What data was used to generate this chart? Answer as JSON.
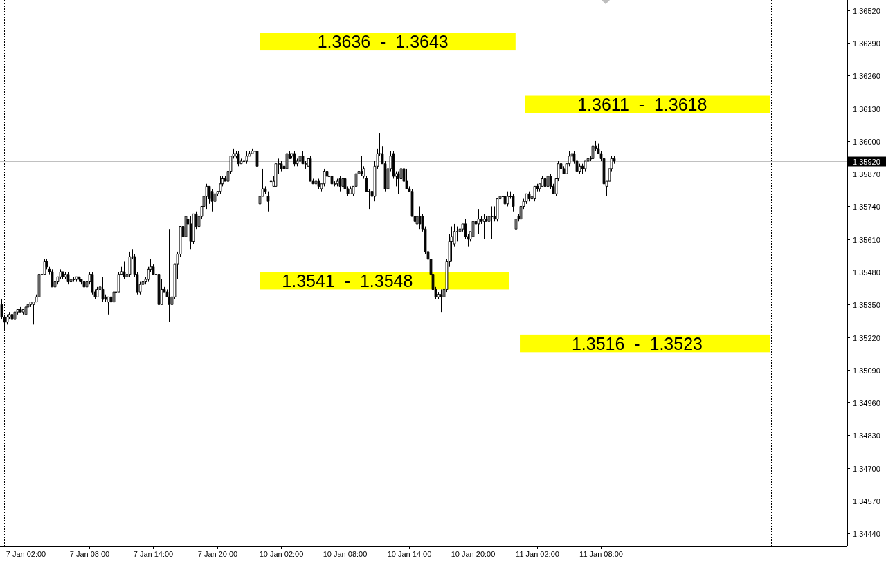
{
  "chart_data": {
    "type": "candlestick",
    "categories": [
      null,
      null,
      null,
      null,
      null,
      null,
      null,
      null,
      null,
      "7 Jan 02:00",
      null,
      null,
      null,
      null,
      null,
      null,
      null,
      null,
      null,
      null,
      null,
      null,
      null,
      null,
      null,
      null,
      null,
      null,
      null,
      null,
      null,
      null,
      null,
      "7 Jan 08:00",
      null,
      null,
      null,
      null,
      null,
      null,
      null,
      null,
      null,
      null,
      null,
      null,
      null,
      null,
      null,
      null,
      null,
      null,
      null,
      null,
      null,
      null,
      null,
      "7 Jan 14:00",
      null,
      null,
      null,
      null,
      null,
      null,
      null,
      null,
      null,
      null,
      null,
      null,
      null,
      null,
      null,
      null,
      null,
      null,
      null,
      null,
      null,
      null,
      null,
      "7 Jan 20:00",
      null,
      null,
      null,
      null,
      null,
      null,
      null,
      null,
      null,
      null,
      null,
      null,
      null,
      null,
      null,
      null,
      null,
      null,
      null,
      null,
      null,
      null,
      null,
      "10 Jan 02:00",
      null,
      null,
      null,
      null,
      null,
      null,
      null,
      null,
      null,
      null,
      null,
      null,
      null,
      null,
      null,
      null,
      null,
      null,
      null,
      null,
      null,
      null,
      null,
      "10 Jan 08:00",
      null,
      null,
      null,
      null,
      null,
      null,
      null,
      null,
      null,
      null,
      null,
      null,
      null,
      null,
      null,
      null,
      null,
      null,
      null,
      null,
      null,
      null,
      null,
      "10 Jan 14:00",
      null,
      null,
      null,
      null,
      null,
      null,
      null,
      null,
      null,
      null,
      null,
      null,
      null,
      null,
      null,
      null,
      null,
      null,
      null,
      null,
      null,
      null,
      null,
      "10 Jan 20:00",
      null,
      null,
      null,
      null,
      null,
      null,
      null,
      null,
      null,
      null,
      null,
      null,
      null,
      null,
      null,
      null,
      null,
      null,
      null,
      null,
      null,
      null,
      null,
      "11 Jan 02:00",
      null,
      null,
      null,
      null,
      null,
      null,
      null,
      null,
      null,
      null,
      null,
      null,
      null,
      null,
      null,
      null,
      null,
      null,
      null,
      null,
      null,
      null,
      null,
      "11 Jan 08:00",
      null,
      null,
      null,
      null,
      null,
      null,
      null,
      null,
      null,
      null,
      null,
      null,
      null,
      null,
      null,
      null,
      null,
      null,
      null,
      null,
      null,
      null,
      null,
      null,
      null,
      null,
      null,
      null,
      null,
      null,
      null,
      null,
      null,
      null,
      null,
      null,
      null,
      null,
      null,
      null,
      null,
      null,
      null,
      null,
      null,
      null,
      null,
      null,
      null,
      null,
      null,
      null,
      null,
      null,
      null,
      null,
      null,
      null,
      null,
      null,
      null,
      null,
      null,
      null,
      null,
      null,
      null,
      null,
      null,
      null,
      null,
      null,
      null,
      null,
      null,
      null,
      null,
      null,
      null,
      null,
      null,
      null,
      null,
      null,
      null,
      null,
      null,
      null,
      null,
      null,
      null,
      null
    ],
    "ohlc": [
      [
        1.3535,
        1.3537,
        1.3529,
        1.353
      ],
      [
        1.353,
        1.3531,
        1.3525,
        1.3528
      ],
      [
        1.3528,
        1.3531,
        1.3527,
        1.353
      ],
      [
        1.353,
        1.3532,
        1.3529,
        1.3531
      ],
      [
        1.3531,
        1.3532,
        1.3528,
        1.3529
      ],
      [
        1.3529,
        1.3533,
        1.3529,
        1.3532
      ],
      [
        1.3532,
        1.3533,
        1.3531,
        1.3533
      ],
      [
        1.3533,
        1.3534,
        1.3532,
        1.3532
      ],
      [
        1.3532,
        1.3533,
        1.3531,
        1.3533
      ],
      [
        1.3531,
        1.3535,
        1.3531,
        1.3534
      ],
      [
        1.3534,
        1.3536,
        1.3533,
        1.3535
      ],
      [
        1.3535,
        1.3536,
        1.3534,
        1.3536
      ],
      [
        1.3535,
        1.3536,
        1.3527,
        1.3536
      ],
      [
        1.3536,
        1.3539,
        1.3536,
        1.3538
      ],
      [
        1.3538,
        1.3548,
        1.3538,
        1.3547
      ],
      [
        1.3547,
        1.3548,
        1.3546,
        1.3547
      ],
      [
        1.3547,
        1.3553,
        1.3547,
        1.3552
      ],
      [
        1.3552,
        1.3553,
        1.3549,
        1.355
      ],
      [
        1.3549,
        1.355,
        1.3547,
        1.3548
      ],
      [
        1.3548,
        1.3549,
        1.3542,
        1.3542
      ],
      [
        1.3542,
        1.3545,
        1.3541,
        1.3544
      ],
      [
        1.3544,
        1.3546,
        1.3543,
        1.3546
      ],
      [
        1.3546,
        1.3549,
        1.3545,
        1.3548
      ],
      [
        1.3548,
        1.3548,
        1.3545,
        1.3546
      ],
      [
        1.3546,
        1.3548,
        1.3545,
        1.3547
      ],
      [
        1.3547,
        1.3548,
        1.3543,
        1.3544
      ],
      [
        1.3544,
        1.3546,
        1.3544,
        1.3545
      ],
      [
        1.3545,
        1.3546,
        1.3544,
        1.3545
      ],
      [
        1.3545,
        1.3546,
        1.3544,
        1.3546
      ],
      [
        1.3546,
        1.3546,
        1.3544,
        1.3545
      ],
      [
        1.3545,
        1.3545,
        1.3543,
        1.3544
      ],
      [
        1.3544,
        1.3545,
        1.3541,
        1.3542
      ],
      [
        1.3542,
        1.3544,
        1.3541,
        1.3544
      ],
      [
        1.3544,
        1.3548,
        1.3543,
        1.3547
      ],
      [
        1.3547,
        1.3548,
        1.3539,
        1.354
      ],
      [
        1.354,
        1.3541,
        1.3537,
        1.3538
      ],
      [
        1.3538,
        1.3542,
        1.3538,
        1.3541
      ],
      [
        1.3541,
        1.3543,
        1.354,
        1.3542
      ],
      [
        1.3541,
        1.3546,
        1.3536,
        1.3537
      ],
      [
        1.3538,
        1.3539,
        1.3536,
        1.3537
      ],
      [
        1.3536,
        1.3538,
        1.3531,
        1.3538
      ],
      [
        1.3538,
        1.3539,
        1.3526,
        1.3536
      ],
      [
        1.3536,
        1.3541,
        1.3535,
        1.354
      ],
      [
        1.354,
        1.3541,
        1.3538,
        1.354
      ],
      [
        1.354,
        1.3548,
        1.354,
        1.3547
      ],
      [
        1.3547,
        1.355,
        1.3547,
        1.3548
      ],
      [
        1.3548,
        1.3552,
        1.3545,
        1.3546
      ],
      [
        1.3546,
        1.3547,
        1.3545,
        1.3547
      ],
      [
        1.3547,
        1.3556,
        1.3546,
        1.3554
      ],
      [
        1.3554,
        1.3557,
        1.3553,
        1.3554
      ],
      [
        1.3554,
        1.3555,
        1.3546,
        1.3547
      ],
      [
        1.3547,
        1.3548,
        1.3539,
        1.354
      ],
      [
        1.354,
        1.3544,
        1.3539,
        1.3543
      ],
      [
        1.3543,
        1.3545,
        1.3542,
        1.3544
      ],
      [
        1.3544,
        1.3546,
        1.3543,
        1.3545
      ],
      [
        1.3545,
        1.355,
        1.3544,
        1.3549
      ],
      [
        1.3549,
        1.3553,
        1.3548,
        1.355
      ],
      [
        1.355,
        1.3551,
        1.3547,
        1.3547
      ],
      [
        1.3547,
        1.3548,
        1.3546,
        1.3547
      ],
      [
        1.3547,
        1.3547,
        1.3535,
        1.3535
      ],
      [
        1.3535,
        1.3545,
        1.3535,
        1.3541
      ],
      [
        1.3541,
        1.3542,
        1.354,
        1.354
      ],
      [
        1.354,
        1.3541,
        1.3538,
        1.3538
      ],
      [
        1.3538,
        1.3565,
        1.3528,
        1.3535
      ],
      [
        1.3535,
        1.3552,
        1.3534,
        1.3538
      ],
      [
        1.3538,
        1.3551,
        1.3537,
        1.3551
      ],
      [
        1.3551,
        1.3556,
        1.3545,
        1.3555
      ],
      [
        1.3555,
        1.3566,
        1.3554,
        1.3566
      ],
      [
        1.3566,
        1.3572,
        1.3558,
        1.3562
      ],
      [
        1.3562,
        1.357,
        1.3562,
        1.357
      ],
      [
        1.3569,
        1.3573,
        1.3564,
        1.3567
      ],
      [
        1.3567,
        1.357,
        1.3557,
        1.356
      ],
      [
        1.356,
        1.3571,
        1.3559,
        1.3571
      ],
      [
        1.3571,
        1.3572,
        1.3565,
        1.3566
      ],
      [
        1.3566,
        1.3574,
        1.3559,
        1.357
      ],
      [
        1.357,
        1.3574,
        1.3569,
        1.3574
      ],
      [
        1.3574,
        1.3579,
        1.3573,
        1.3578
      ],
      [
        1.3578,
        1.3583,
        1.3573,
        1.3582
      ],
      [
        1.3582,
        1.3582,
        1.3575,
        1.3577
      ],
      [
        1.358,
        1.3581,
        1.3572,
        1.3576
      ],
      [
        1.3576,
        1.358,
        1.3575,
        1.3579
      ],
      [
        1.3579,
        1.358,
        1.3578,
        1.358
      ],
      [
        1.358,
        1.3586,
        1.3579,
        1.3583
      ],
      [
        1.3583,
        1.3586,
        1.3582,
        1.3585
      ],
      [
        1.3585,
        1.3586,
        1.3584,
        1.3584
      ],
      [
        1.3584,
        1.3589,
        1.3584,
        1.3588
      ],
      [
        1.3588,
        1.3594,
        1.3587,
        1.3594
      ],
      [
        1.3594,
        1.3597,
        1.3593,
        1.3595
      ],
      [
        1.3594,
        1.3596,
        1.3593,
        1.3595
      ],
      [
        1.3595,
        1.3596,
        1.359,
        1.3591
      ],
      [
        1.3591,
        1.3593,
        1.3591,
        1.3592
      ],
      [
        1.3592,
        1.3593,
        1.3591,
        1.3592
      ],
      [
        1.3592,
        1.3596,
        1.3591,
        1.3594
      ],
      [
        1.3594,
        1.3596,
        1.3594,
        1.3595
      ],
      [
        1.3595,
        1.3597,
        1.3595,
        1.3596
      ],
      [
        1.3596,
        1.3597,
        1.3594,
        1.3596
      ],
      [
        1.3596,
        1.3596,
        1.359,
        1.359
      ],
      [
        1.3575,
        1.3578,
        1.3573,
        1.3578
      ],
      [
        1.3578,
        1.3589,
        1.3578,
        1.3581
      ],
      [
        1.3581,
        1.3582,
        1.3579,
        1.358
      ],
      [
        1.3578,
        1.358,
        1.3572,
        1.3576
      ],
      [
        1.3584,
        1.3591,
        1.3583,
        1.3584
      ],
      [
        1.3582,
        1.3586,
        1.3582,
        1.3584
      ],
      [
        1.3582,
        1.3591,
        1.3582,
        1.3591
      ],
      [
        1.3591,
        1.3593,
        1.3587,
        1.3591
      ],
      [
        1.3591,
        1.3592,
        1.3588,
        1.3589
      ],
      [
        1.359,
        1.3594,
        1.3589,
        1.3589
      ],
      [
        1.3589,
        1.3597,
        1.3589,
        1.3595
      ],
      [
        1.3595,
        1.3596,
        1.3593,
        1.3593
      ],
      [
        1.3594,
        1.3595,
        1.3593,
        1.3595
      ],
      [
        1.3595,
        1.3596,
        1.359,
        1.3591
      ],
      [
        1.3591,
        1.3593,
        1.359,
        1.3592
      ],
      [
        1.3592,
        1.3595,
        1.3592,
        1.3594
      ],
      [
        1.3594,
        1.3596,
        1.3591,
        1.3591
      ],
      [
        1.3591,
        1.3592,
        1.3589,
        1.3591
      ],
      [
        1.359,
        1.3593,
        1.359,
        1.3593
      ],
      [
        1.3593,
        1.3594,
        1.3584,
        1.3584
      ],
      [
        1.3584,
        1.3585,
        1.3583,
        1.3583
      ],
      [
        1.3583,
        1.3584,
        1.3582,
        1.3584
      ],
      [
        1.3584,
        1.3585,
        1.3581,
        1.3582
      ],
      [
        1.3581,
        1.3583,
        1.358,
        1.3583
      ],
      [
        1.3583,
        1.3589,
        1.3582,
        1.3588
      ],
      [
        1.3588,
        1.3589,
        1.3585,
        1.3586
      ],
      [
        1.3586,
        1.3589,
        1.3585,
        1.3586
      ],
      [
        1.3586,
        1.3587,
        1.3582,
        1.3583
      ],
      [
        1.3583,
        1.3584,
        1.3582,
        1.3583
      ],
      [
        1.3583,
        1.3585,
        1.3582,
        1.3584
      ],
      [
        1.3585,
        1.3586,
        1.358,
        1.3582
      ],
      [
        1.3582,
        1.3586,
        1.358,
        1.3585
      ],
      [
        1.3585,
        1.3586,
        1.358,
        1.3581
      ],
      [
        1.3581,
        1.3582,
        1.3578,
        1.3579
      ],
      [
        1.3579,
        1.3582,
        1.3579,
        1.3581
      ],
      [
        1.3579,
        1.3582,
        1.3578,
        1.3582
      ],
      [
        1.3582,
        1.3589,
        1.3582,
        1.3587
      ],
      [
        1.3587,
        1.3589,
        1.3586,
        1.3588
      ],
      [
        1.3588,
        1.3594,
        1.3586,
        1.3587
      ],
      [
        1.3586,
        1.359,
        1.3585,
        1.3589
      ],
      [
        1.3585,
        1.3586,
        1.358,
        1.358
      ],
      [
        1.358,
        1.3581,
        1.3573,
        1.358
      ],
      [
        1.358,
        1.3581,
        1.3577,
        1.3578
      ],
      [
        1.3578,
        1.3592,
        1.3576,
        1.359
      ],
      [
        1.359,
        1.3597,
        1.3589,
        1.3595
      ],
      [
        1.3595,
        1.3603,
        1.3594,
        1.3595
      ],
      [
        1.3595,
        1.3598,
        1.3591,
        1.3591
      ],
      [
        1.3591,
        1.3592,
        1.358,
        1.3581
      ],
      [
        1.3581,
        1.359,
        1.3578,
        1.3589
      ],
      [
        1.3589,
        1.3596,
        1.3588,
        1.3594
      ],
      [
        1.3595,
        1.3596,
        1.3585,
        1.3586
      ],
      [
        1.3586,
        1.3588,
        1.3582,
        1.3587
      ],
      [
        1.3587,
        1.3588,
        1.3579,
        1.3585
      ],
      [
        1.3585,
        1.359,
        1.3584,
        1.3589
      ],
      [
        1.3589,
        1.359,
        1.3583,
        1.3584
      ],
      [
        1.3584,
        1.3589,
        1.3581,
        1.3581
      ],
      [
        1.3581,
        1.3582,
        1.358,
        1.358
      ],
      [
        1.358,
        1.3581,
        1.357,
        1.357
      ],
      [
        1.357,
        1.3571,
        1.3567,
        1.3568
      ],
      [
        1.3567,
        1.3571,
        1.3564,
        1.357
      ],
      [
        1.357,
        1.3574,
        1.3565,
        1.3567
      ],
      [
        1.357,
        1.3571,
        1.3564,
        1.3565
      ],
      [
        1.3565,
        1.3566,
        1.3555,
        1.3556
      ],
      [
        1.3556,
        1.3557,
        1.3553,
        1.3553
      ],
      [
        1.3553,
        1.3553,
        1.3547,
        1.3547
      ],
      [
        1.3547,
        1.3548,
        1.3539,
        1.3541
      ],
      [
        1.3541,
        1.3542,
        1.3537,
        1.3538
      ],
      [
        1.3538,
        1.354,
        1.3537,
        1.3539
      ],
      [
        1.3539,
        1.3541,
        1.3532,
        1.3538
      ],
      [
        1.3538,
        1.3542,
        1.3537,
        1.3541
      ],
      [
        1.3541,
        1.3553,
        1.354,
        1.3552
      ],
      [
        1.3552,
        1.3563,
        1.355,
        1.356
      ],
      [
        1.356,
        1.3566,
        1.3552,
        1.3562
      ],
      [
        1.3559,
        1.3567,
        1.3558,
        1.3564
      ],
      [
        1.3564,
        1.3566,
        1.356,
        1.3564
      ],
      [
        1.3564,
        1.3566,
        1.3559,
        1.3565
      ],
      [
        1.3565,
        1.3567,
        1.3564,
        1.3567
      ],
      [
        1.3567,
        1.3569,
        1.3561,
        1.3562
      ],
      [
        1.3562,
        1.3563,
        1.3558,
        1.3561
      ],
      [
        1.3561,
        1.3564,
        1.356,
        1.3564
      ],
      [
        1.3562,
        1.3569,
        1.3562,
        1.3568
      ],
      [
        1.3568,
        1.357,
        1.3564,
        1.3567
      ],
      [
        1.3567,
        1.3573,
        1.3563,
        1.3569
      ],
      [
        1.3569,
        1.357,
        1.3567,
        1.3568
      ],
      [
        1.3568,
        1.3571,
        1.3561,
        1.3569
      ],
      [
        1.3569,
        1.357,
        1.3568,
        1.3568
      ],
      [
        1.3568,
        1.3572,
        1.3568,
        1.357
      ],
      [
        1.357,
        1.3574,
        1.3561,
        1.357
      ],
      [
        1.357,
        1.3574,
        1.3568,
        1.3569
      ],
      [
        1.3569,
        1.3577,
        1.3568,
        1.3577
      ],
      [
        1.3577,
        1.3578,
        1.3576,
        1.3578
      ],
      [
        1.3578,
        1.358,
        1.3577,
        1.3578
      ],
      [
        1.3578,
        1.3579,
        1.3574,
        1.3575
      ],
      [
        1.3575,
        1.358,
        1.3574,
        1.3578
      ],
      [
        1.3578,
        1.358,
        1.3577,
        1.3578
      ],
      [
        1.3578,
        1.3579,
        1.3572,
        1.3574
      ],
      [
        1.3565,
        1.357,
        1.3563,
        1.3569
      ],
      [
        1.357,
        1.3571,
        1.3568,
        1.3569
      ],
      [
        1.3569,
        1.3575,
        1.3568,
        1.3574
      ],
      [
        1.3574,
        1.3577,
        1.3573,
        1.3576
      ],
      [
        1.3576,
        1.3579,
        1.3575,
        1.3579
      ],
      [
        1.3579,
        1.358,
        1.3576,
        1.3577
      ],
      [
        1.3577,
        1.3579,
        1.3576,
        1.3578
      ],
      [
        1.3577,
        1.3582,
        1.3576,
        1.3582
      ],
      [
        1.3582,
        1.3583,
        1.358,
        1.3581
      ],
      [
        1.3581,
        1.3583,
        1.358,
        1.3583
      ],
      [
        1.3582,
        1.3586,
        1.3582,
        1.3585
      ],
      [
        1.3585,
        1.3588,
        1.3581,
        1.3582
      ],
      [
        1.3582,
        1.3586,
        1.358,
        1.3586
      ],
      [
        1.3586,
        1.3587,
        1.3581,
        1.3582
      ],
      [
        1.3582,
        1.3583,
        1.3579,
        1.3579
      ],
      [
        1.3579,
        1.3585,
        1.3578,
        1.3585
      ],
      [
        1.3585,
        1.3592,
        1.3584,
        1.3591
      ],
      [
        1.3591,
        1.3593,
        1.3589,
        1.3589
      ],
      [
        1.3589,
        1.359,
        1.3587,
        1.3587
      ],
      [
        1.3587,
        1.3591,
        1.3587,
        1.3591
      ],
      [
        1.3591,
        1.3596,
        1.359,
        1.3594
      ],
      [
        1.3594,
        1.3597,
        1.3593,
        1.3595
      ],
      [
        1.3595,
        1.3596,
        1.3591,
        1.3592
      ],
      [
        1.3592,
        1.3593,
        1.3588,
        1.3588
      ],
      [
        1.3588,
        1.3591,
        1.3587,
        1.359
      ],
      [
        1.359,
        1.3591,
        1.3587,
        1.3589
      ],
      [
        1.3589,
        1.3592,
        1.3588,
        1.3592
      ],
      [
        1.3592,
        1.3594,
        1.3591,
        1.3593
      ],
      [
        1.3593,
        1.3594,
        1.3592,
        1.3593
      ],
      [
        1.3593,
        1.3598,
        1.3593,
        1.3598
      ],
      [
        1.3598,
        1.36,
        1.3596,
        1.3597
      ],
      [
        1.3597,
        1.3599,
        1.3595,
        1.3595
      ],
      [
        1.3595,
        1.3596,
        1.3592,
        1.3593
      ],
      [
        1.3593,
        1.3593,
        1.3582,
        1.3583
      ],
      [
        1.3582,
        1.3584,
        1.3578,
        1.3584
      ],
      [
        1.3584,
        1.3589,
        1.3584,
        1.3589
      ],
      [
        1.3589,
        1.3594,
        1.3588,
        1.3593
      ],
      [
        1.3593,
        1.3594,
        1.3591,
        1.3592
      ],
      null,
      null,
      null,
      null,
      null,
      null,
      null,
      null,
      null,
      null,
      null,
      null,
      null,
      null,
      null,
      null,
      null,
      null,
      null,
      null,
      null,
      null,
      null,
      null,
      null,
      null,
      null,
      null,
      null,
      null,
      null,
      null,
      null,
      null,
      null,
      null,
      null,
      null,
      null,
      null,
      null,
      null,
      null,
      null,
      null,
      null,
      null,
      null,
      null,
      null,
      null,
      null,
      null,
      null,
      null,
      null,
      null,
      null,
      null,
      null,
      null,
      null,
      null,
      null,
      null,
      null,
      null,
      null,
      null,
      null,
      null,
      null,
      null,
      null,
      null,
      null,
      null,
      null,
      null,
      null,
      null,
      null,
      null,
      null,
      null,
      null,
      null
    ],
    "ylim": [
      1.34388,
      1.36561
    ],
    "yticks": [
      {
        "value": 1.3652,
        "label": "1.36520"
      },
      {
        "value": 1.3639,
        "label": "1.36390"
      },
      {
        "value": 1.3626,
        "label": "1.36260"
      },
      {
        "value": 1.3613,
        "label": "1.36130"
      },
      {
        "value": 1.36,
        "label": "1.36000"
      },
      {
        "value": 1.3587,
        "label": "1.35870"
      },
      {
        "value": 1.3574,
        "label": "1.35740"
      },
      {
        "value": 1.3561,
        "label": "1.35610"
      },
      {
        "value": 1.3548,
        "label": "1.35480"
      },
      {
        "value": 1.3535,
        "label": "1.35350"
      },
      {
        "value": 1.3522,
        "label": "1.35220"
      },
      {
        "value": 1.3509,
        "label": "1.35090"
      },
      {
        "value": 1.3496,
        "label": "1.34960"
      },
      {
        "value": 1.3483,
        "label": "1.34830"
      },
      {
        "value": 1.347,
        "label": "1.34700"
      },
      {
        "value": 1.3457,
        "label": "1.34570"
      },
      {
        "value": 1.3444,
        "label": "1.34440"
      }
    ],
    "ref_lines": [
      {
        "axis": "y",
        "value": 1.3592,
        "label": "1.35920",
        "color": "#c0c0c0"
      }
    ],
    "bands": [
      {
        "axis": "y",
        "from": 1.3636,
        "to": 1.3643,
        "label": "1.3636  -  1.3643",
        "color": "#ffff00"
      },
      {
        "axis": "y",
        "from": 1.3611,
        "to": 1.3618,
        "label": "1.3611  -  1.3618",
        "color": "#ffff00"
      },
      {
        "axis": "y",
        "from": 1.3541,
        "to": 1.3548,
        "label": "1.3541  -  1.3548",
        "color": "#ffff00"
      },
      {
        "axis": "y",
        "from": 1.3516,
        "to": 1.3523,
        "label": "1.3516  -  1.3523",
        "color": "#ffff00"
      }
    ]
  }
}
